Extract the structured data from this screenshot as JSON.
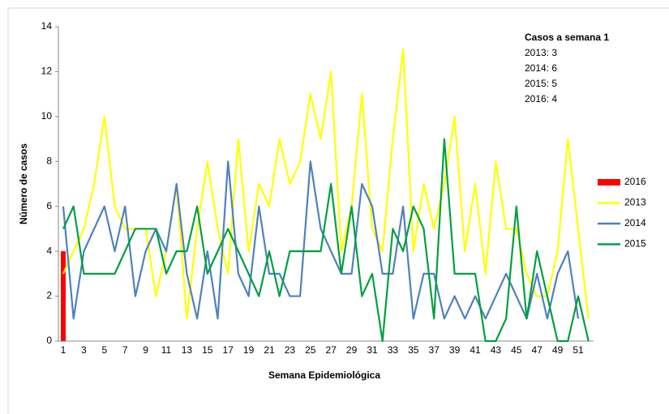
{
  "chart_data": {
    "type": "line",
    "x_label": "Semana Epidemiológica",
    "y_label": "Número de casos",
    "annotation": [
      "Casos a semana 1",
      "2013: 3",
      "2014: 6",
      "2015: 5",
      "2016: 4"
    ],
    "categories": [
      "1",
      null,
      "3",
      null,
      "5",
      null,
      "7",
      null,
      "9",
      null,
      "11",
      null,
      "13",
      null,
      "15",
      null,
      "17",
      null,
      "19",
      null,
      "21",
      null,
      "23",
      null,
      "25",
      null,
      "27",
      null,
      "29",
      null,
      "31",
      null,
      "33",
      null,
      "35",
      null,
      "37",
      null,
      "39",
      null,
      "41",
      null,
      "43",
      null,
      "45",
      null,
      "47",
      null,
      "49",
      null,
      "51",
      null
    ],
    "ylim": [
      0,
      14
    ],
    "yticks": [
      0,
      2,
      4,
      6,
      8,
      10,
      12,
      14
    ],
    "series": [
      {
        "name": "2016",
        "type": "bar",
        "color": "#ff0000",
        "values": [
          4,
          null,
          null,
          null,
          null,
          null,
          null,
          null,
          null,
          null,
          null,
          null,
          null,
          null,
          null,
          null,
          null,
          null,
          null,
          null,
          null,
          null,
          null,
          null,
          null,
          null,
          null,
          null,
          null,
          null,
          null,
          null,
          null,
          null,
          null,
          null,
          null,
          null,
          null,
          null,
          null,
          null,
          null,
          null,
          null,
          null,
          null,
          null,
          null,
          null,
          null,
          null
        ]
      },
      {
        "name": "2013",
        "color": "#ffff00",
        "values": [
          3,
          4,
          5,
          7,
          10,
          6,
          5,
          5,
          5,
          2,
          4,
          7,
          1,
          5,
          8,
          5,
          3,
          9,
          4,
          7,
          6,
          9,
          7,
          8,
          11,
          9,
          12,
          4,
          6,
          11,
          5,
          4,
          9,
          13,
          4,
          7,
          5,
          7,
          10,
          4,
          7,
          3,
          8,
          5,
          5,
          3,
          2,
          2,
          4,
          9,
          5,
          1
        ]
      },
      {
        "name": "2014",
        "color": "#4f81bd",
        "values": [
          6,
          1,
          4,
          5,
          6,
          4,
          6,
          2,
          4,
          5,
          4,
          7,
          3,
          1,
          4,
          1,
          8,
          3,
          2,
          6,
          3,
          3,
          2,
          2,
          8,
          5,
          4,
          3,
          3,
          7,
          6,
          3,
          3,
          6,
          1,
          3,
          3,
          1,
          2,
          1,
          2,
          1,
          2,
          3,
          2,
          1,
          3,
          1,
          3,
          4,
          1,
          null
        ]
      },
      {
        "name": "2015",
        "color": "#00a040",
        "values": [
          5,
          6,
          3,
          3,
          3,
          3,
          4,
          5,
          5,
          5,
          3,
          4,
          4,
          6,
          3,
          4,
          5,
          4,
          3,
          2,
          4,
          2,
          4,
          4,
          4,
          4,
          7,
          3,
          6,
          2,
          3,
          0,
          5,
          4,
          6,
          5,
          1,
          9,
          3,
          3,
          3,
          0,
          0,
          1,
          6,
          1,
          4,
          2,
          0,
          0,
          2,
          0
        ]
      }
    ]
  }
}
